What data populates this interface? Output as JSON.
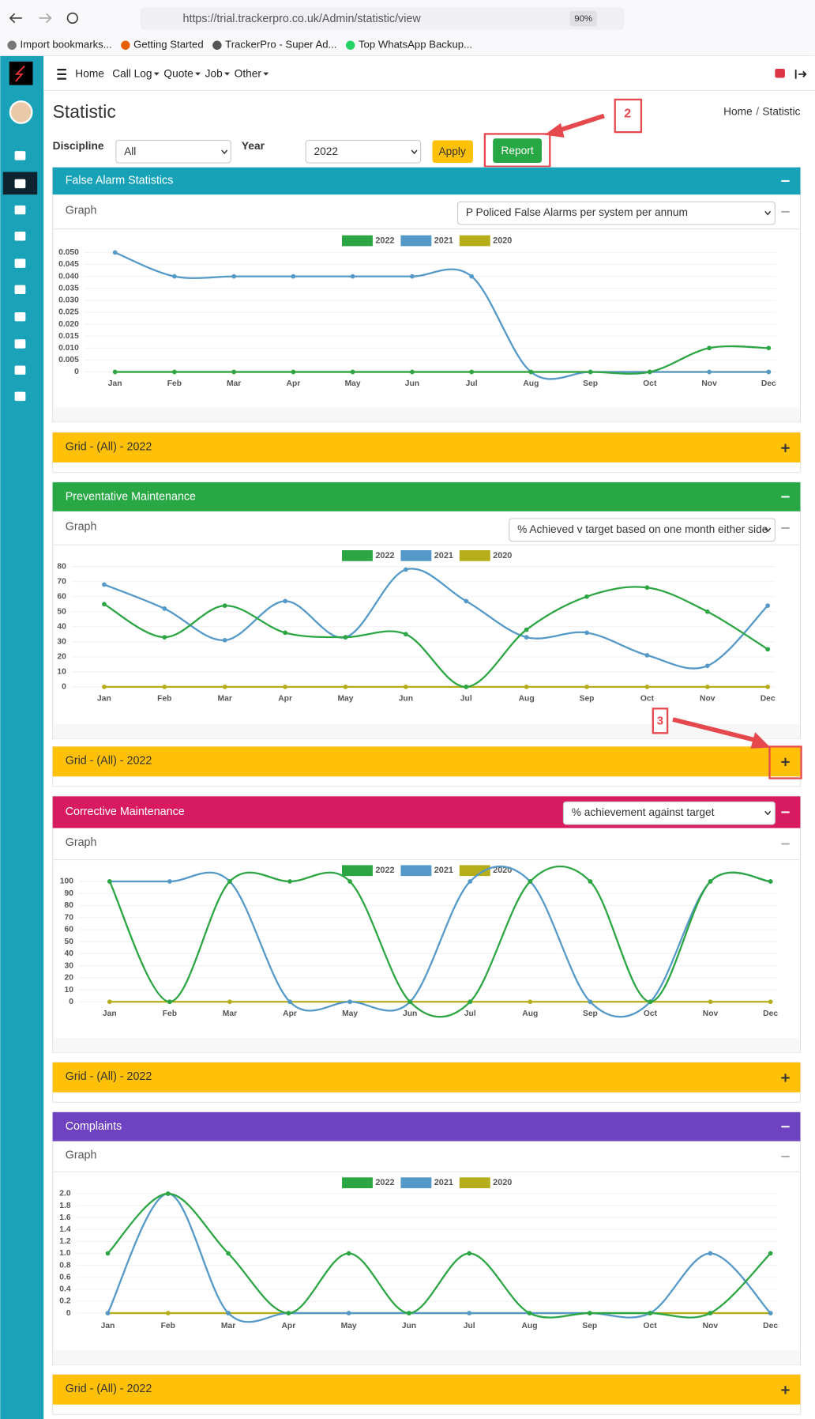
{
  "browser": {
    "url": "https://trial.trackerpro.co.uk/Admin/statistic/view",
    "zoom": "90%",
    "bookmarks": [
      "Import bookmarks...",
      "Getting Started",
      "TrackerPro - Super Ad...",
      "Top WhatsApp Backup..."
    ]
  },
  "nav": {
    "items": [
      "Home",
      "Call Log",
      "Quote",
      "Job",
      "Other"
    ]
  },
  "page": {
    "title": "Statistic",
    "breadcrumb": [
      "Home",
      "Statistic"
    ],
    "filters": {
      "discipline_label": "Discipline",
      "discipline": "All",
      "year_label": "Year",
      "year": "2022",
      "apply": "Apply",
      "report": "Report"
    }
  },
  "annotations": [
    "2",
    "3"
  ],
  "panels": [
    {
      "title": "False Alarm Statistics",
      "color": "#17a2b8",
      "graph": "Graph",
      "select": "P Policed False Alarms per system per annum",
      "grid": "Grid - (All) - 2022"
    },
    {
      "title": "Preventative Maintenance",
      "color": "#28a745",
      "graph": "Graph",
      "select": "% Achieved v target based on one month either side",
      "grid": "Grid - (All) - 2022"
    },
    {
      "title": "Corrective Maintenance",
      "color": "#d81b60",
      "graph": "Graph",
      "select": "% achievement against target",
      "grid": "Grid - (All) - 2022"
    },
    {
      "title": "Complaints",
      "color": "#6f42c1",
      "graph": "Graph",
      "grid": "Grid - (All) - 2022"
    }
  ],
  "chart_data": [
    {
      "type": "line",
      "categories": [
        "Jan",
        "Feb",
        "Mar",
        "Apr",
        "May",
        "Jun",
        "Jul",
        "Aug",
        "Sep",
        "Oct",
        "Nov",
        "Dec"
      ],
      "series": [
        {
          "name": "2022",
          "color": "#2ca543",
          "values": [
            0,
            0,
            0,
            0,
            0,
            0,
            0,
            0,
            0,
            0,
            0.01,
            0.01
          ]
        },
        {
          "name": "2021",
          "color": "#5499c7",
          "values": [
            0.05,
            0.04,
            0.04,
            0.04,
            0.04,
            0.04,
            0.04,
            0,
            0,
            0,
            0,
            0
          ]
        },
        {
          "name": "2020",
          "color": "#b5ad1a",
          "values": [
            0,
            0,
            0,
            0,
            0,
            0,
            0,
            0,
            0,
            0,
            0,
            0
          ]
        }
      ],
      "ylim": [
        0,
        0.05
      ],
      "yticks": [
        0,
        0.005,
        {
          "value": 0.01,
          "label": "0.010"
        },
        0.015,
        {
          "value": 0.02,
          "label": "0.020"
        },
        0.025,
        {
          "value": 0.03,
          "label": "0.030"
        },
        0.035,
        {
          "value": 0.04,
          "label": "0.040"
        },
        0.045,
        {
          "value": 0.05,
          "label": "0.050"
        }
      ]
    },
    {
      "type": "line",
      "categories": [
        "Jan",
        "Feb",
        "Mar",
        "Apr",
        "May",
        "Jun",
        "Jul",
        "Aug",
        "Sep",
        "Oct",
        "Nov",
        "Dec"
      ],
      "series": [
        {
          "name": "2022",
          "color": "#2ca543",
          "values": [
            55,
            33,
            54,
            36,
            33,
            35,
            0,
            38,
            60,
            66,
            50,
            25
          ]
        },
        {
          "name": "2021",
          "color": "#5499c7",
          "values": [
            68,
            52,
            31,
            57,
            33,
            78,
            57,
            33,
            36,
            21,
            14,
            54
          ]
        },
        {
          "name": "2020",
          "color": "#b5ad1a",
          "values": [
            0,
            0,
            0,
            0,
            0,
            0,
            0,
            0,
            0,
            0,
            0,
            0
          ]
        }
      ],
      "ylim": [
        0,
        80
      ],
      "yticks": [
        0,
        10,
        20,
        30,
        40,
        50,
        60,
        70,
        80
      ]
    },
    {
      "type": "line",
      "categories": [
        "Jan",
        "Feb",
        "Mar",
        "Apr",
        "May",
        "Jun",
        "Jul",
        "Aug",
        "Sep",
        "Oct",
        "Nov",
        "Dec"
      ],
      "series": [
        {
          "name": "2022",
          "color": "#2ca543",
          "values": [
            100,
            0,
            100,
            100,
            100,
            0,
            0,
            100,
            100,
            0,
            100,
            100
          ]
        },
        {
          "name": "2021",
          "color": "#5499c7",
          "values": [
            100,
            100,
            100,
            0,
            0,
            0,
            100,
            100,
            0,
            0,
            100,
            100
          ]
        },
        {
          "name": "2020",
          "color": "#b5ad1a",
          "values": [
            0,
            0,
            0,
            0,
            0,
            0,
            0,
            0,
            0,
            0,
            0,
            0
          ]
        }
      ],
      "ylim": [
        0,
        100
      ],
      "yticks": [
        0,
        10,
        20,
        30,
        40,
        50,
        60,
        70,
        80,
        90,
        100
      ]
    },
    {
      "type": "line",
      "categories": [
        "Jan",
        "Feb",
        "Mar",
        "Apr",
        "May",
        "Jun",
        "Jul",
        "Aug",
        "Sep",
        "Oct",
        "Nov",
        "Dec"
      ],
      "series": [
        {
          "name": "2022",
          "color": "#2ca543",
          "values": [
            1,
            2,
            1,
            0,
            1,
            0,
            1,
            0,
            0,
            0,
            0,
            1
          ]
        },
        {
          "name": "2021",
          "color": "#5499c7",
          "values": [
            0,
            2,
            0,
            0,
            0,
            0,
            0,
            0,
            0,
            0,
            1,
            0
          ]
        },
        {
          "name": "2020",
          "color": "#b5ad1a",
          "values": [
            0,
            0,
            0,
            0,
            0,
            0,
            0,
            0,
            0,
            0,
            0,
            0
          ]
        }
      ],
      "ylim": [
        0,
        2
      ],
      "yticks": [
        0,
        0.2,
        0.4,
        0.6,
        0.8,
        {
          "value": 1,
          "label": "1.0"
        },
        1.2,
        1.4,
        1.6,
        1.8,
        {
          "value": 2,
          "label": "2.0"
        }
      ]
    }
  ]
}
